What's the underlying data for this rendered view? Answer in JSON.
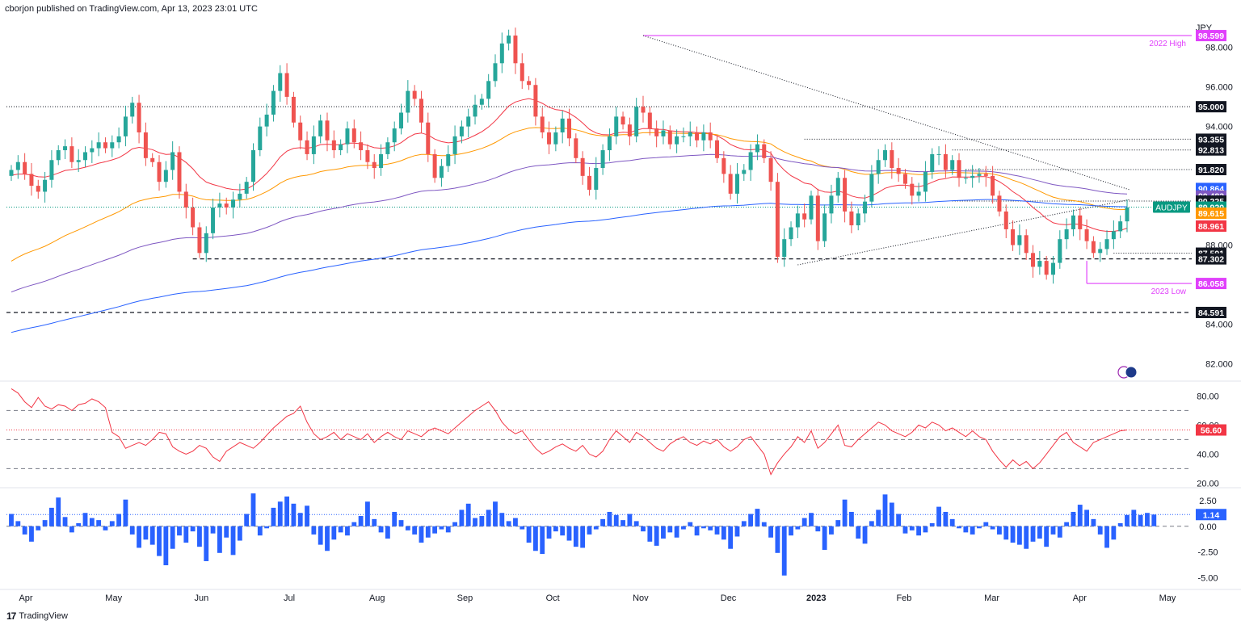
{
  "header": {
    "text": "cborjon published on TradingView.com, Apr 13, 2023 23:01 UTC"
  },
  "footer": {
    "logo_text": "17",
    "brand": "TradingView"
  },
  "colors": {
    "up": "#26a69a",
    "down": "#ef5350",
    "ema20": "#f23645",
    "ema50": "#ff9800",
    "ema100": "#7e57c2",
    "ema200": "#2962ff",
    "rsi": "#f23645",
    "roc": "#2962ff",
    "high_low": "#e040fb",
    "last": "#089981"
  },
  "chart_data": [
    {
      "type": "candlestick",
      "symbol": "AUDJPY",
      "currency": "JPY",
      "x_tick_labels": [
        "Apr",
        "May",
        "Jun",
        "Jul",
        "Aug",
        "Sep",
        "Oct",
        "Nov",
        "Dec",
        "2023",
        "Feb",
        "Mar",
        "Apr",
        "May"
      ],
      "y_ticks": [
        82.0,
        84.0,
        88.0,
        94.0,
        96.0,
        98.0
      ],
      "ylim": [
        81.2,
        99.5
      ],
      "price_labels": [
        {
          "value": 98.599,
          "text": "98.599",
          "style": "high_low"
        },
        {
          "value": 95.0,
          "text": "95.000",
          "style": "level"
        },
        {
          "value": 93.355,
          "text": "93.355",
          "style": "level"
        },
        {
          "value": 92.813,
          "text": "92.813",
          "style": "level"
        },
        {
          "value": 91.82,
          "text": "91.820",
          "style": "level"
        },
        {
          "value": 90.864,
          "text": "90.864",
          "style": "ema200"
        },
        {
          "value": 90.483,
          "text": "90.483",
          "style": "ema100"
        },
        {
          "value": 90.225,
          "text": "90.225",
          "style": "level"
        },
        {
          "value": 89.92,
          "text": "89.920",
          "style": "last"
        },
        {
          "value": 89.615,
          "text": "89.615",
          "style": "ema50"
        },
        {
          "value": 88.961,
          "text": "88.961",
          "style": "ema20"
        },
        {
          "value": 87.591,
          "text": "87.591",
          "style": "level"
        },
        {
          "value": 87.302,
          "text": "87.302",
          "style": "level"
        },
        {
          "value": 86.058,
          "text": "86.058",
          "style": "high_low"
        },
        {
          "value": 84.591,
          "text": "84.591",
          "style": "level"
        }
      ],
      "annotations": [
        {
          "text": "2022 High",
          "value": 98.599
        },
        {
          "text": "2023 Low",
          "value": 86.058
        },
        {
          "text": "AUDJPY",
          "value": 89.92
        }
      ],
      "series": {
        "close": [
          91.8,
          92.2,
          91.6,
          91.0,
          90.7,
          91.3,
          92.3,
          92.8,
          93.0,
          92.2,
          92.3,
          92.7,
          92.9,
          93.2,
          92.9,
          93.2,
          93.5,
          94.5,
          95.2,
          93.7,
          92.4,
          92.2,
          91.2,
          91.8,
          92.7,
          90.7,
          89.9,
          88.9,
          87.6,
          88.6,
          89.9,
          90.1,
          89.9,
          90.3,
          90.6,
          91.2,
          92.8,
          94.0,
          94.6,
          95.8,
          96.7,
          95.5,
          94.2,
          93.3,
          92.6,
          93.5,
          94.3,
          93.3,
          92.8,
          93.1,
          93.9,
          93.2,
          92.8,
          92.2,
          91.9,
          92.6,
          93.2,
          93.9,
          94.7,
          95.8,
          95.4,
          94.2,
          92.6,
          91.4,
          92.0,
          92.6,
          93.5,
          94.0,
          94.5,
          95.1,
          95.4,
          96.3,
          97.2,
          98.2,
          98.6,
          97.2,
          96.3,
          96.1,
          94.5,
          93.7,
          93.1,
          93.7,
          94.4,
          93.4,
          92.4,
          91.5,
          90.8,
          91.9,
          92.8,
          93.5,
          94.5,
          94.1,
          93.5,
          95.0,
          94.7,
          93.9,
          93.5,
          93.8,
          93.1,
          93.5,
          93.5,
          93.7,
          93.3,
          93.7,
          93.3,
          92.4,
          91.6,
          90.6,
          91.6,
          91.8,
          92.7,
          93.1,
          92.4,
          91.2,
          87.4,
          88.3,
          88.9,
          89.6,
          89.3,
          90.5,
          88.2,
          89.6,
          90.5,
          91.4,
          89.7,
          89.0,
          89.6,
          90.2,
          91.6,
          92.3,
          92.8,
          91.9,
          91.6,
          91.1,
          90.5,
          90.7,
          91.7,
          92.6,
          92.6,
          91.8,
          92.3,
          91.4,
          91.4,
          91.5,
          91.6,
          91.5,
          90.5,
          89.7,
          88.8,
          88.0,
          88.5,
          87.6,
          86.9,
          87.2,
          86.5,
          87.1,
          88.3,
          88.8,
          89.5,
          88.8,
          88.2,
          87.6,
          87.8,
          88.3,
          88.7,
          89.2,
          89.9
        ]
      }
    },
    {
      "type": "line",
      "name": "RSI",
      "y_ticks": [
        20.0,
        40.0,
        60.0,
        80.0
      ],
      "ylim": [
        18,
        88
      ],
      "levels": [
        30,
        50,
        70
      ],
      "last_label": "56.60",
      "values": [
        85,
        82,
        76,
        72,
        79,
        73,
        71,
        74,
        73,
        70,
        74,
        75,
        78,
        76,
        72,
        55,
        52,
        44,
        46,
        48,
        46,
        50,
        55,
        54,
        45,
        42,
        40,
        42,
        46,
        44,
        38,
        35,
        42,
        45,
        48,
        46,
        44,
        48,
        53,
        58,
        62,
        66,
        68,
        73,
        62,
        54,
        50,
        52,
        55,
        50,
        54,
        52,
        50,
        54,
        48,
        52,
        55,
        52,
        50,
        56,
        54,
        52,
        56,
        58,
        56,
        54,
        58,
        62,
        66,
        70,
        73,
        76,
        70,
        62,
        57,
        54,
        56,
        50,
        44,
        40,
        42,
        45,
        47,
        44,
        42,
        46,
        40,
        38,
        42,
        50,
        56,
        52,
        48,
        55,
        52,
        48,
        44,
        42,
        47,
        50,
        52,
        48,
        46,
        49,
        47,
        50,
        45,
        42,
        45,
        50,
        52,
        46,
        40,
        26,
        34,
        40,
        45,
        52,
        48,
        56,
        44,
        48,
        54,
        60,
        46,
        45,
        50,
        54,
        58,
        62,
        60,
        56,
        54,
        52,
        55,
        60,
        58,
        62,
        60,
        56,
        58,
        55,
        52,
        56,
        52,
        50,
        42,
        36,
        31,
        36,
        32,
        35,
        30,
        34,
        40,
        46,
        52,
        55,
        48,
        45,
        42,
        48,
        50,
        52,
        54,
        56,
        56.6
      ]
    },
    {
      "type": "bar",
      "name": "ROC",
      "y_ticks": [
        -5.0,
        -2.5,
        0.0,
        2.5
      ],
      "ylim": [
        -6.0,
        3.6
      ],
      "last_label": "1.14",
      "values": [
        1.2,
        0.5,
        -0.8,
        -1.5,
        -0.4,
        0.6,
        1.8,
        2.8,
        0.9,
        -0.6,
        0.3,
        1.3,
        0.8,
        0.6,
        -0.4,
        0.5,
        1.2,
        2.6,
        -0.8,
        -2.1,
        -1.3,
        -1.8,
        -2.9,
        -3.8,
        -2.2,
        -0.9,
        -1.6,
        -0.5,
        -2.0,
        -3.4,
        -0.7,
        -2.6,
        -1.1,
        -2.8,
        -1.4,
        1.2,
        3.2,
        -0.9,
        -0.2,
        1.8,
        2.4,
        2.9,
        2.2,
        1.3,
        2.0,
        -0.8,
        -1.8,
        -2.4,
        -1.3,
        -0.6,
        -0.9,
        0.4,
        1.0,
        2.4,
        0.7,
        -0.6,
        -1.2,
        1.4,
        0.6,
        -0.4,
        -0.8,
        -1.6,
        -1.1,
        -0.7,
        -0.3,
        -0.6,
        0.4,
        1.6,
        2.2,
        0.8,
        1.0,
        1.6,
        2.4,
        1.3,
        0.5,
        0.8,
        -0.3,
        -1.6,
        -2.4,
        -2.7,
        -1.2,
        -0.5,
        -0.9,
        -1.4,
        -2.0,
        -2.1,
        -0.8,
        -0.3,
        0.7,
        1.4,
        1.1,
        0.6,
        1.2,
        0.5,
        -0.5,
        -1.5,
        -1.9,
        -1.2,
        -0.6,
        -1.1,
        -0.3,
        0.4,
        -0.9,
        -0.2,
        -0.4,
        -0.8,
        -1.3,
        -2.2,
        -1.0,
        0.5,
        1.2,
        1.7,
        0.4,
        -1.1,
        -2.6,
        -4.8,
        -0.9,
        -0.3,
        0.8,
        1.3,
        -0.5,
        -2.3,
        -0.8,
        0.6,
        2.6,
        1.4,
        -1.2,
        -1.7,
        0.5,
        1.6,
        3.1,
        2.3,
        1.2,
        -0.7,
        -0.4,
        -0.9,
        -0.6,
        0.3,
        1.9,
        1.4,
        0.7,
        -0.2,
        -0.6,
        -0.8,
        -0.2,
        0.4,
        -0.3,
        -0.8,
        -1.3,
        -1.6,
        -1.8,
        -2.2,
        -1.5,
        -1.2,
        -2.0,
        -0.8,
        -1.1,
        0.4,
        1.4,
        2.1,
        1.6,
        0.7,
        -0.8,
        -2.1,
        -1.3,
        0.3,
        1.1,
        1.6,
        1.1,
        1.3,
        1.14
      ]
    }
  ]
}
